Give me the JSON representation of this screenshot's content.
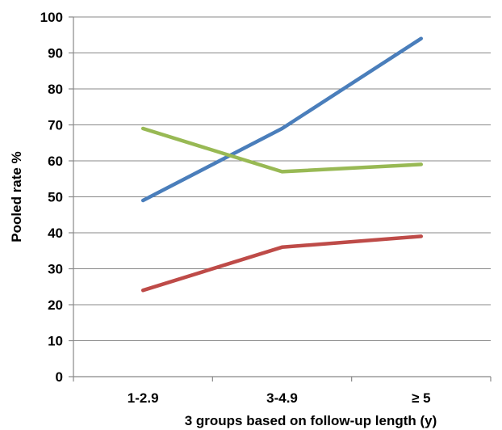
{
  "chart_data": {
    "type": "line",
    "title": "",
    "xlabel": "3 groups based on follow-up length (y)",
    "ylabel": "Pooled rate %",
    "categories": [
      "1-2.9",
      "3-4.9",
      "≥ 5"
    ],
    "ylim": [
      0,
      100
    ],
    "yticks": [
      "0",
      "10",
      "20",
      "30",
      "40",
      "50",
      "60",
      "70",
      "80",
      "90",
      "100"
    ],
    "grid": true,
    "legend": "none",
    "series": [
      {
        "color": "#4a7ebb",
        "values": [
          49,
          69,
          94
        ]
      },
      {
        "color": "#98b954",
        "values": [
          69,
          57,
          59
        ]
      },
      {
        "color": "#be4b48",
        "values": [
          24,
          36,
          39
        ]
      }
    ]
  }
}
